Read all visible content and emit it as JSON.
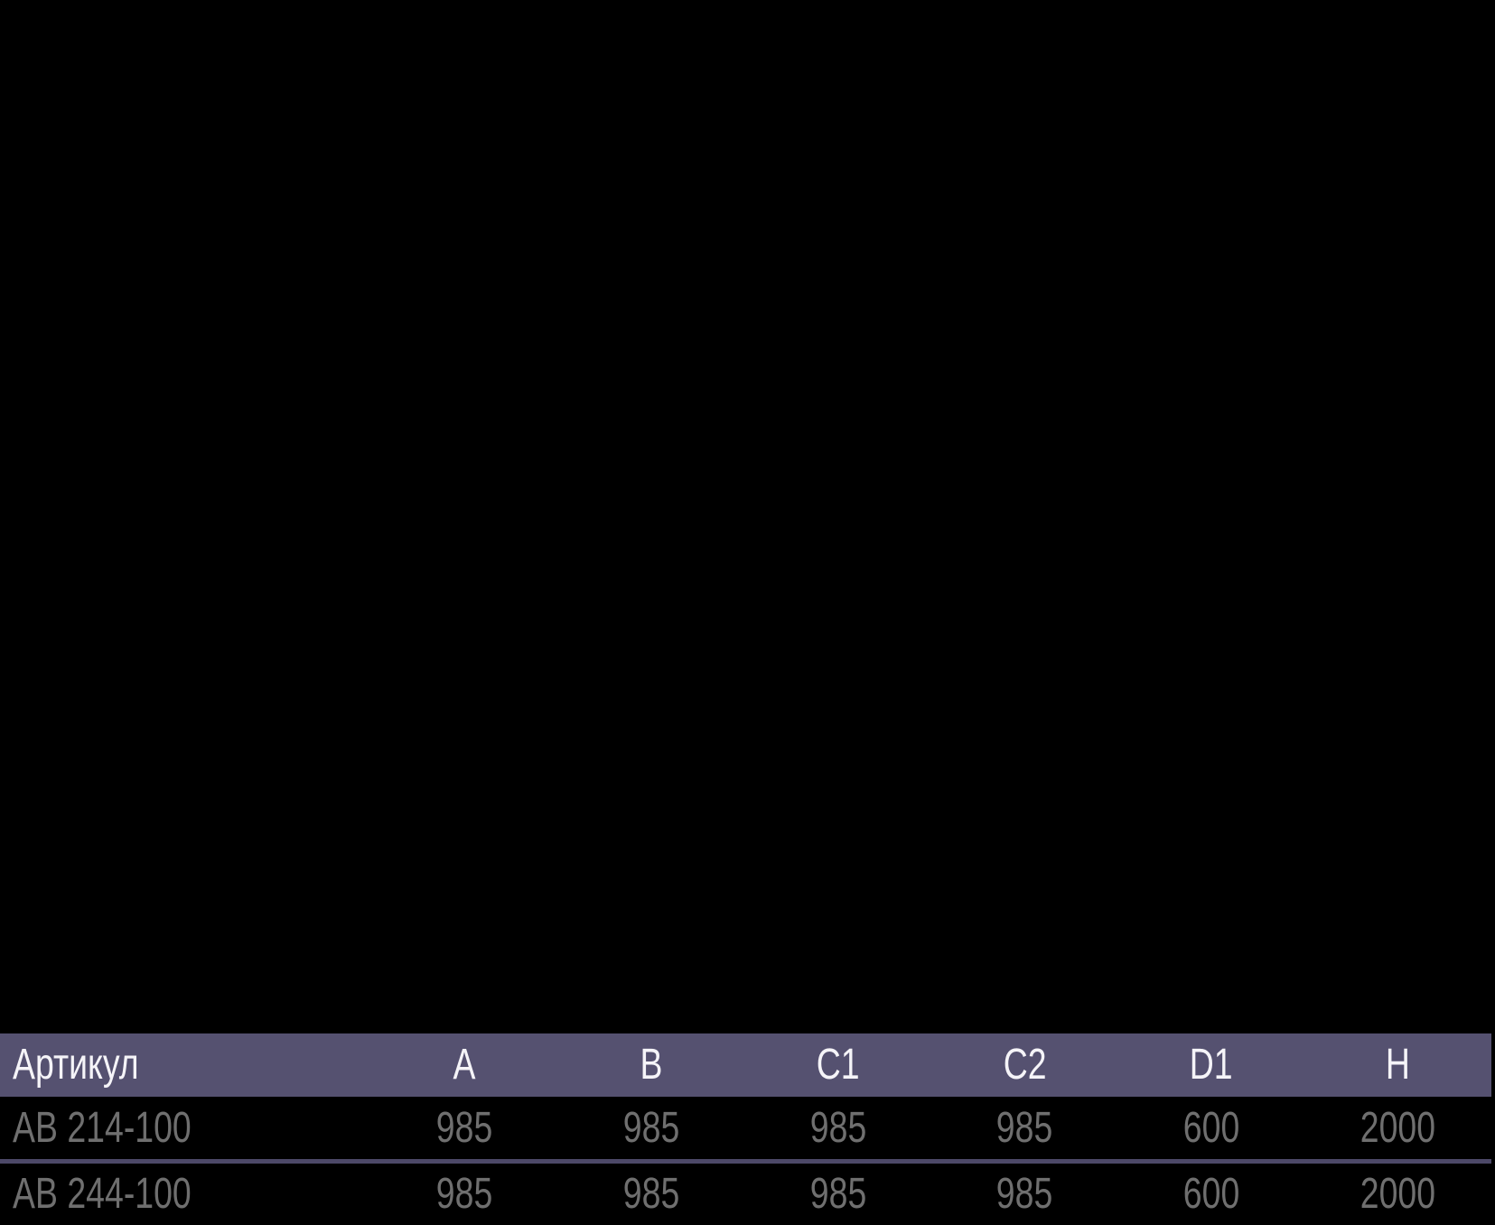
{
  "colors": {
    "background": "#000000",
    "header_bg": "#555170",
    "header_text": "#f5f4f8",
    "row_text": "#6f6f6f",
    "divider": "#4d4968"
  },
  "table": {
    "header": [
      "Артикул",
      "A",
      "B",
      "C1",
      "C2",
      "D1",
      "H"
    ],
    "rows": [
      {
        "cells": [
          "АВ 214-100",
          "985",
          "985",
          "985",
          "985",
          "600",
          "2000"
        ]
      },
      {
        "cells": [
          "АВ 244-100",
          "985",
          "985",
          "985",
          "985",
          "600",
          "2000"
        ]
      }
    ]
  }
}
